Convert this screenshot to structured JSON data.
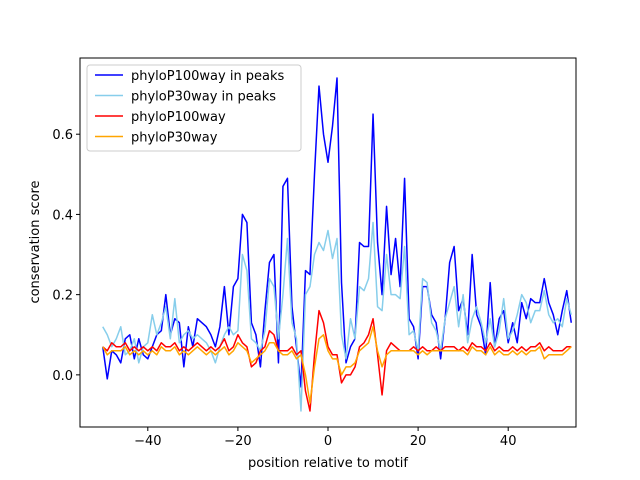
{
  "chart_data": {
    "type": "line",
    "xlabel": "position relative to motif",
    "ylabel": "conservation score",
    "xlim": [
      -55.05,
      55.05
    ],
    "ylim": [
      -0.13,
      0.79
    ],
    "xticks": [
      -40,
      -20,
      0,
      20,
      40
    ],
    "yticks": [
      0.0,
      0.2,
      0.4,
      0.6
    ],
    "ytick_labels": [
      "0.0",
      "0.2",
      "0.4",
      "0.6"
    ],
    "grid": false,
    "legend_position": "top-left",
    "x_start": -50,
    "x_step": 1,
    "series": [
      {
        "name": "phyloP100way in peaks",
        "color": "#0000ff",
        "values": [
          0.07,
          -0.01,
          0.06,
          0.05,
          0.03,
          0.09,
          0.1,
          0.04,
          0.09,
          0.05,
          0.04,
          0.07,
          0.1,
          0.11,
          0.2,
          0.1,
          0.14,
          0.13,
          0.02,
          0.12,
          0.07,
          0.14,
          0.13,
          0.12,
          0.1,
          0.07,
          0.12,
          0.22,
          0.1,
          0.22,
          0.24,
          0.4,
          0.38,
          0.13,
          0.1,
          0.02,
          0.16,
          0.28,
          0.3,
          0.03,
          0.47,
          0.49,
          0.17,
          0.07,
          -0.03,
          0.26,
          0.25,
          0.5,
          0.72,
          0.6,
          0.53,
          0.62,
          0.74,
          0.23,
          0.03,
          0.07,
          0.09,
          0.33,
          0.32,
          0.32,
          0.65,
          0.33,
          0.2,
          0.42,
          0.25,
          0.34,
          0.22,
          0.49,
          0.14,
          0.12,
          0.04,
          0.22,
          0.22,
          0.15,
          0.13,
          0.04,
          0.14,
          0.28,
          0.32,
          0.16,
          0.19,
          0.1,
          0.3,
          0.15,
          0.12,
          0.05,
          0.23,
          0.07,
          0.14,
          0.16,
          0.08,
          0.13,
          0.08,
          0.18,
          0.14,
          0.19,
          0.18,
          0.18,
          0.24,
          0.18,
          0.15,
          0.1,
          0.16,
          0.21,
          0.13
        ]
      },
      {
        "name": "phyloP30way in peaks",
        "color": "#87ceeb",
        "values": [
          0.12,
          0.1,
          0.07,
          0.09,
          0.12,
          0.05,
          0.06,
          0.09,
          0.03,
          0.07,
          0.08,
          0.15,
          0.1,
          0.13,
          0.17,
          0.09,
          0.19,
          0.08,
          0.1,
          0.11,
          0.09,
          0.1,
          0.09,
          0.08,
          0.06,
          0.03,
          0.07,
          0.1,
          0.12,
          0.1,
          0.11,
          0.3,
          0.26,
          0.09,
          0.08,
          0.06,
          0.11,
          0.24,
          0.22,
          0.09,
          0.2,
          0.34,
          0.13,
          0.09,
          -0.09,
          0.2,
          0.22,
          0.3,
          0.33,
          0.31,
          0.36,
          0.29,
          0.34,
          0.1,
          0.04,
          0.14,
          0.09,
          0.22,
          0.21,
          0.24,
          0.38,
          0.17,
          0.16,
          0.3,
          0.2,
          0.2,
          0.19,
          0.32,
          0.1,
          0.11,
          0.06,
          0.24,
          0.23,
          0.13,
          0.11,
          0.06,
          0.14,
          0.18,
          0.22,
          0.12,
          0.2,
          0.08,
          0.14,
          0.17,
          0.13,
          0.08,
          0.14,
          0.07,
          0.11,
          0.19,
          0.09,
          0.11,
          0.15,
          0.2,
          0.18,
          0.13,
          0.16,
          0.16,
          0.21,
          0.15,
          0.13,
          0.14,
          0.12,
          0.19,
          0.15
        ]
      },
      {
        "name": "phyloP100way",
        "color": "#ff0000",
        "values": [
          0.07,
          0.06,
          0.08,
          0.07,
          0.07,
          0.08,
          0.06,
          0.07,
          0.06,
          0.07,
          0.06,
          0.07,
          0.06,
          0.08,
          0.07,
          0.07,
          0.08,
          0.06,
          0.07,
          0.06,
          0.07,
          0.08,
          0.07,
          0.06,
          0.07,
          0.06,
          0.07,
          0.09,
          0.06,
          0.07,
          0.1,
          0.08,
          0.07,
          0.02,
          0.03,
          0.06,
          0.07,
          0.11,
          0.1,
          0.06,
          0.06,
          0.06,
          0.07,
          0.05,
          0.06,
          -0.04,
          -0.09,
          0.05,
          0.16,
          0.13,
          0.07,
          0.05,
          0.05,
          -0.02,
          0.0,
          0.0,
          0.02,
          0.07,
          0.08,
          0.1,
          0.14,
          0.05,
          -0.05,
          0.06,
          0.08,
          0.07,
          0.06,
          0.06,
          0.06,
          0.07,
          0.06,
          0.07,
          0.06,
          0.06,
          0.07,
          0.06,
          0.07,
          0.07,
          0.07,
          0.06,
          0.07,
          0.06,
          0.08,
          0.07,
          0.07,
          0.06,
          0.08,
          0.06,
          0.07,
          0.06,
          0.06,
          0.07,
          0.06,
          0.07,
          0.06,
          0.07,
          0.07,
          0.08,
          0.06,
          0.07,
          0.06,
          0.06,
          0.06,
          0.07,
          0.07
        ]
      },
      {
        "name": "phyloP30way",
        "color": "#ffa500",
        "values": [
          0.07,
          0.05,
          0.06,
          0.06,
          0.06,
          0.07,
          0.05,
          0.06,
          0.05,
          0.06,
          0.05,
          0.06,
          0.05,
          0.07,
          0.06,
          0.06,
          0.07,
          0.05,
          0.06,
          0.05,
          0.06,
          0.07,
          0.06,
          0.05,
          0.06,
          0.05,
          0.06,
          0.07,
          0.05,
          0.06,
          0.08,
          0.07,
          0.06,
          0.03,
          0.04,
          0.05,
          0.06,
          0.08,
          0.08,
          0.06,
          0.05,
          0.05,
          0.06,
          0.04,
          0.05,
          0.0,
          -0.07,
          0.02,
          0.09,
          0.1,
          0.06,
          0.04,
          0.04,
          0.0,
          0.02,
          0.02,
          0.03,
          0.06,
          0.07,
          0.08,
          0.12,
          0.06,
          0.02,
          0.05,
          0.06,
          0.06,
          0.06,
          0.06,
          0.06,
          0.06,
          0.05,
          0.06,
          0.05,
          0.06,
          0.06,
          0.06,
          0.06,
          0.06,
          0.06,
          0.06,
          0.06,
          0.05,
          0.07,
          0.06,
          0.06,
          0.05,
          0.07,
          0.05,
          0.06,
          0.05,
          0.05,
          0.06,
          0.05,
          0.06,
          0.05,
          0.06,
          0.06,
          0.07,
          0.04,
          0.05,
          0.05,
          0.05,
          0.05,
          0.06,
          0.07
        ]
      }
    ]
  }
}
